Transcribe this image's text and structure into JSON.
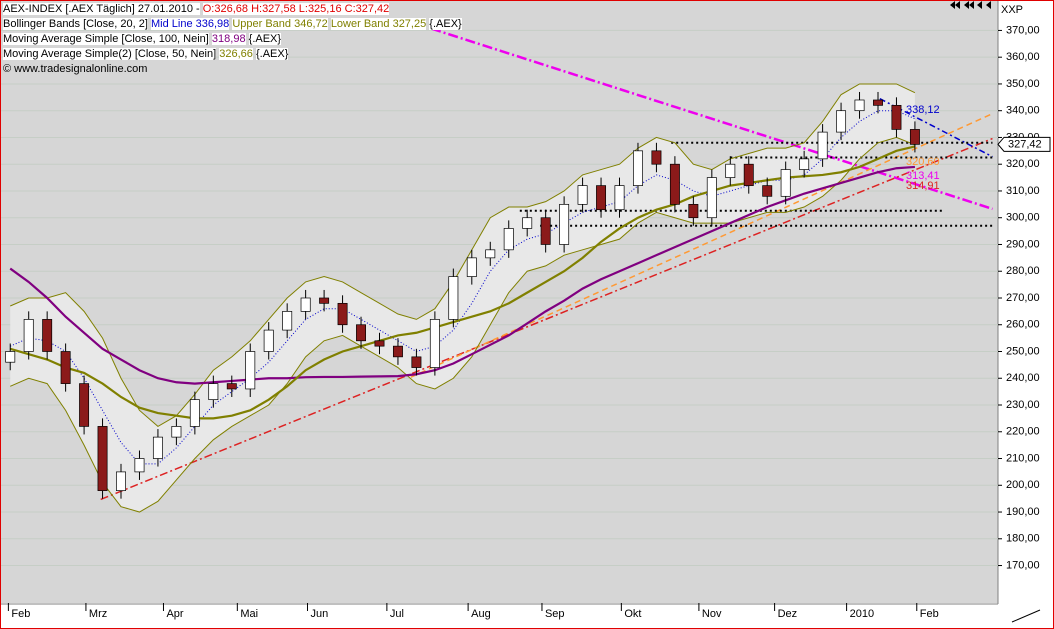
{
  "chart_data": {
    "type": "candlestick",
    "title": "AEX-INDEX [.AEX  Täglich] 27.01.2010 -",
    "title_values": "O:326,68 H:327,58 L:325,16 C:327,42",
    "legend_rows": [
      {
        "text": "Bollinger Bands [Close, 20, 2]",
        "items": [
          {
            "text": "Mid Line 336,98",
            "color": "#0000cc"
          },
          {
            "text": "Upper Band 346,72",
            "color": "#808000"
          },
          {
            "text": "Lower Band 327,25",
            "color": "#808000"
          }
        ],
        "suffix": "{.AEX}"
      },
      {
        "text": "Moving Average Simple [Close, 100, Nein]",
        "items": [
          {
            "text": "318,98",
            "color": "#800080"
          }
        ],
        "suffix": "{.AEX}"
      },
      {
        "text": "Moving Average Simple(2) [Close, 50, Nein]",
        "items": [
          {
            "text": "326,66",
            "color": "#808000"
          }
        ],
        "suffix": "{.AEX}"
      }
    ],
    "copyright": "© www.tradesignalonline.com",
    "symbol_code": "XXP",
    "xlim": [
      0,
      54
    ],
    "xticks": [
      {
        "value": 0.4,
        "label": "Feb"
      },
      {
        "value": 4.6,
        "label": "Mrz"
      },
      {
        "value": 8.8,
        "label": "Apr"
      },
      {
        "value": 12.8,
        "label": "Mai"
      },
      {
        "value": 16.6,
        "label": "Jun"
      },
      {
        "value": 20.9,
        "label": "Jul"
      },
      {
        "value": 25.3,
        "label": "Aug"
      },
      {
        "value": 29.3,
        "label": "Sep"
      },
      {
        "value": 33.6,
        "label": "Okt"
      },
      {
        "value": 37.8,
        "label": "Nov"
      },
      {
        "value": 41.9,
        "label": "Dez"
      },
      {
        "value": 45.8,
        "label": "2010"
      },
      {
        "value": 49.6,
        "label": "Feb"
      }
    ],
    "ylim": [
      156,
      381
    ],
    "yticks": [
      {
        "value": 170,
        "label": "170,00"
      },
      {
        "value": 180,
        "label": "180,00"
      },
      {
        "value": 190,
        "label": "190,00"
      },
      {
        "value": 200,
        "label": "200,00"
      },
      {
        "value": 210,
        "label": "210,00"
      },
      {
        "value": 220,
        "label": "220,00"
      },
      {
        "value": 230,
        "label": "230,00"
      },
      {
        "value": 240,
        "label": "240,00"
      },
      {
        "value": 250,
        "label": "250,00"
      },
      {
        "value": 260,
        "label": "260,00"
      },
      {
        "value": 270,
        "label": "270,00"
      },
      {
        "value": 280,
        "label": "280,00"
      },
      {
        "value": 290,
        "label": "290,00"
      },
      {
        "value": 300,
        "label": "300,00"
      },
      {
        "value": 310,
        "label": "310,00"
      },
      {
        "value": 320,
        "label": "320,00"
      },
      {
        "value": 330,
        "label": "330,00"
      },
      {
        "value": 340,
        "label": "340,00"
      },
      {
        "value": 350,
        "label": "350,00"
      },
      {
        "value": 360,
        "label": "360,00"
      },
      {
        "value": 370,
        "label": "370,00"
      }
    ],
    "grid": true,
    "x": [
      0.5,
      1.5,
      2.5,
      3.5,
      4.5,
      5.5,
      6.5,
      7.5,
      8.5,
      9.5,
      10.5,
      11.5,
      12.5,
      13.5,
      14.5,
      15.5,
      16.5,
      17.5,
      18.5,
      19.5,
      20.5,
      21.5,
      22.5,
      23.5,
      24.5,
      25.5,
      26.5,
      27.5,
      28.5,
      29.5,
      30.5,
      31.5,
      32.5,
      33.5,
      34.5,
      35.5,
      36.5,
      37.5,
      38.5,
      39.5,
      40.5,
      41.5,
      42.5,
      43.5,
      44.5,
      45.5,
      46.5,
      47.5,
      48.5,
      49.5
    ],
    "open": [
      246,
      250,
      262,
      250,
      238,
      222,
      198,
      205,
      210,
      218,
      222,
      232,
      238,
      236,
      250,
      258,
      265,
      270,
      268,
      260,
      254,
      252,
      248,
      244,
      262,
      278,
      285,
      288,
      296,
      300,
      290,
      305,
      312,
      303,
      312,
      325,
      320,
      305,
      300,
      315,
      320,
      312,
      308,
      318,
      322,
      332,
      340,
      344,
      342,
      333
    ],
    "high": [
      253,
      265,
      265,
      253,
      241,
      225,
      208,
      213,
      221,
      225,
      235,
      241,
      241,
      253,
      261,
      268,
      273,
      273,
      271,
      263,
      257,
      255,
      251,
      265,
      281,
      288,
      291,
      299,
      303,
      303,
      308,
      315,
      315,
      315,
      328,
      328,
      323,
      308,
      318,
      323,
      323,
      315,
      321,
      325,
      335,
      343,
      347,
      347,
      345,
      336
    ],
    "low": [
      243,
      247,
      247,
      235,
      219,
      195,
      195,
      202,
      207,
      215,
      219,
      229,
      233,
      233,
      247,
      255,
      262,
      265,
      257,
      251,
      249,
      245,
      241,
      241,
      259,
      275,
      282,
      285,
      293,
      287,
      287,
      302,
      300,
      300,
      309,
      317,
      302,
      297,
      297,
      312,
      309,
      305,
      305,
      315,
      319,
      329,
      337,
      339,
      330,
      324.42
    ],
    "close": [
      250,
      262,
      250,
      238,
      222,
      198,
      205,
      210,
      218,
      222,
      232,
      238,
      236,
      250,
      258,
      265,
      270,
      268,
      260,
      254,
      252,
      248,
      244,
      262,
      278,
      285,
      288,
      296,
      300,
      290,
      305,
      312,
      303,
      312,
      325,
      320,
      305,
      300,
      315,
      320,
      312,
      308,
      318,
      322,
      332,
      340,
      344,
      342,
      333,
      327.42
    ],
    "up_color": "#ffffff",
    "down_color": "#8b1a1a",
    "band_fill": "#e8e8e8",
    "series": [
      {
        "color": "#808000",
        "width": 1,
        "dash": "",
        "values": [
          267,
          270,
          270,
          272,
          265,
          255,
          240,
          228,
          222,
          226,
          234,
          243,
          248,
          254,
          262,
          270,
          276,
          278,
          276,
          272,
          268,
          264,
          262,
          266,
          276,
          288,
          300,
          304,
          304,
          306,
          310,
          316,
          318,
          320,
          326,
          330,
          328,
          320,
          318,
          322,
          324,
          326,
          326,
          328,
          336,
          346,
          350,
          350,
          350,
          346.72
        ]
      },
      {
        "color": "#808000",
        "width": 1,
        "dash": "",
        "values": [
          237,
          240,
          238,
          228,
          215,
          201,
          192,
          190,
          194,
          202,
          210,
          217,
          222,
          226,
          230,
          238,
          248,
          254,
          256,
          252,
          248,
          244,
          238,
          236,
          240,
          248,
          260,
          272,
          280,
          282,
          286,
          288,
          290,
          292,
          298,
          302,
          300,
          298,
          298,
          298,
          300,
          302,
          302,
          304,
          308,
          314,
          322,
          328,
          330,
          327.25
        ]
      },
      {
        "color": "#0000cc",
        "width": 1,
        "dash": "1 2",
        "values": [
          252,
          255,
          254,
          250,
          240,
          228,
          216,
          208,
          208,
          214,
          222,
          230,
          235,
          240,
          246,
          254,
          262,
          266,
          266,
          262,
          258,
          254,
          250,
          252,
          258,
          268,
          280,
          288,
          292,
          294,
          298,
          302,
          304,
          306,
          312,
          316,
          314,
          310,
          308,
          310,
          312,
          314,
          314,
          316,
          322,
          330,
          336,
          340,
          340,
          336.98
        ]
      },
      {
        "color": "#800080",
        "width": 2.2,
        "dash": "",
        "values": [
          281,
          276,
          270,
          263,
          257,
          251,
          247,
          243,
          240,
          238.5,
          238,
          238.5,
          239,
          239.5,
          240,
          240,
          240.4,
          240.5,
          240.5,
          240.6,
          240.7,
          240.8,
          241.5,
          243,
          245.5,
          249,
          252.5,
          256,
          260.5,
          265,
          269,
          273.5,
          277,
          280,
          283,
          286,
          289,
          292,
          295,
          298,
          301,
          304,
          306.5,
          309,
          311,
          313,
          315,
          317,
          318.5,
          318.98
        ]
      },
      {
        "color": "#808000",
        "width": 2.2,
        "dash": "",
        "values": [
          251,
          249,
          247,
          244,
          242,
          238,
          233,
          229,
          227,
          226,
          225,
          225,
          226,
          228,
          232,
          237,
          243,
          247,
          250,
          252,
          254,
          256,
          257,
          259,
          261,
          263,
          265,
          268,
          272,
          276,
          280,
          285,
          291,
          296,
          300,
          303,
          305,
          308,
          310,
          312,
          313,
          314,
          315,
          315.5,
          316,
          317,
          319,
          322,
          325,
          326.66
        ]
      }
    ],
    "trend_lines": [
      {
        "color": "#ee00ee",
        "dash": "10 3 2 3",
        "width": 2.5,
        "x": [
          23.3,
          53.7
        ],
        "y": [
          370.7,
          303.3
        ],
        "label": "313,41"
      },
      {
        "color": "#dd2222",
        "dash": "8 3 2 3",
        "width": 1.5,
        "x": [
          5.4,
          53.7
        ],
        "y": [
          194.7,
          329.6
        ],
        "label": "314,91"
      },
      {
        "color": "#ff9933",
        "dash": "6 4",
        "width": 1.5,
        "x": [
          22.2,
          53.7
        ],
        "y": [
          240.4,
          338.9
        ],
        "label": "320,60"
      },
      {
        "color": "#0000cc",
        "dash": "6 3 2 3",
        "width": 1.5,
        "x": [
          47.6,
          53.7
        ],
        "y": [
          344.5,
          322.8
        ],
        "label": "338,12"
      },
      {
        "color": "#000000",
        "dash": "2 3",
        "width": 2,
        "x": [
          36.3,
          53.7
        ],
        "y": [
          328,
          328
        ]
      },
      {
        "color": "#000000",
        "dash": "2 3",
        "width": 2,
        "x": [
          39.5,
          53.7
        ],
        "y": [
          322.5,
          322.5
        ]
      },
      {
        "color": "#000000",
        "dash": "2 3",
        "width": 2,
        "x": [
          28.1,
          51.1
        ],
        "y": [
          302.6,
          302.6
        ]
      },
      {
        "color": "#000000",
        "dash": "2 3",
        "width": 2,
        "x": [
          29.2,
          53.7
        ],
        "y": [
          297,
          297
        ]
      }
    ],
    "last_price": {
      "value": 327.42,
      "label": "327,42"
    }
  }
}
